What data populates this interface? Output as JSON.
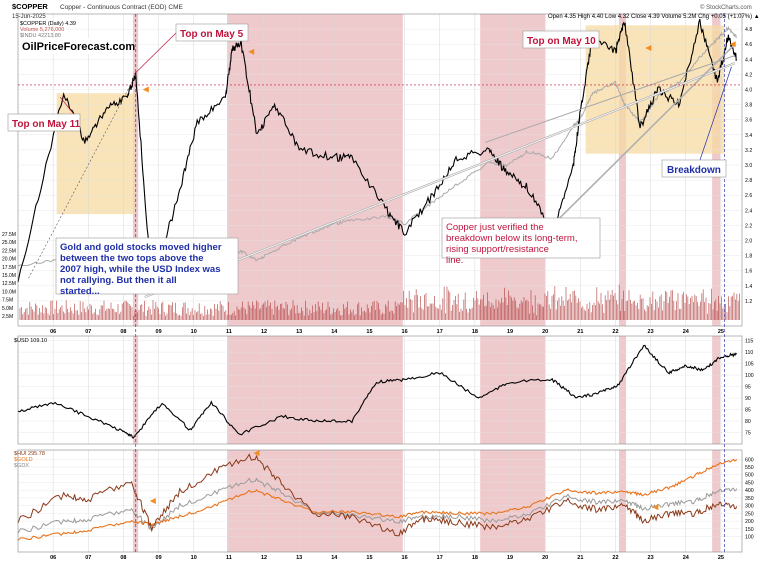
{
  "header": {
    "symbol": "$COPPER",
    "description": "Copper - Continuous Contract (EOD) CME",
    "date": "15-Jun-2025",
    "watermark": "© StockCharts.com",
    "quote": "Open 4.35  High 4.40  Low 4.32  Close 4.39  Volume 5.2M  Chg +0.05 (+1.07%) ▲",
    "legend": [
      {
        "label": "$COPPER (Daily) 4.39",
        "color": "#000000"
      },
      {
        "label": "Volume 5,276,000",
        "color": "#c0504d"
      },
      {
        "label": "$INDU 42213.80",
        "color": "#999999"
      }
    ]
  },
  "brand": "OilPriceForecast.com",
  "annotations": {
    "top_may11": "Top on May 11",
    "top_may5": "Top on May 5",
    "top_may10": "Top on May 10",
    "breakdown": "Breakdown",
    "gold_note": "Gold and gold stocks moved higher between the two tops above the 2007 high, while the USD Index was not rallying. But then it all started...",
    "copper_note": "Copper just verified the breakdown below its long-term, rising support/resistance line."
  },
  "colors": {
    "copper": "#000000",
    "indu": "#aaaaaa",
    "volume": "#b03a3a",
    "shade_red": "#e8b4b8",
    "shade_orange": "#f7d9a0",
    "annotation_red": "#c0143c",
    "annotation_blue": "#1f2fa8",
    "arrow_orange": "#f28c1e",
    "hui": "#8b3a1a",
    "gold": "#e8731c",
    "gdx": "#9a9a9a",
    "usd": "#000000"
  },
  "chart_data": [
    {
      "type": "line",
      "x": [
        2005.0,
        2006.3,
        2006.9,
        2007.5,
        2008.1,
        2008.35,
        2008.8,
        2009.5,
        2010.1,
        2010.9,
        2011.1,
        2011.35,
        2011.8,
        2012.3,
        2013.0,
        2013.9,
        2014.5,
        2015.5,
        2016.0,
        2016.8,
        2017.5,
        2018.4,
        2018.9,
        2019.5,
        2020.2,
        2020.8,
        2021.0,
        2021.35,
        2022.0,
        2022.25,
        2022.7,
        2023.2,
        2023.8,
        2024.4,
        2024.9,
        2025.2,
        2025.45
      ],
      "series": [
        {
          "name": "$COPPER (Daily) 4.39",
          "values": [
            1.45,
            3.95,
            3.3,
            3.75,
            3.9,
            4.2,
            1.4,
            2.5,
            3.55,
            3.9,
            4.55,
            4.6,
            3.4,
            3.8,
            3.2,
            3.1,
            3.1,
            2.4,
            2.1,
            2.6,
            3.1,
            3.2,
            2.9,
            2.7,
            2.1,
            3.0,
            3.7,
            4.7,
            4.5,
            4.9,
            3.5,
            4.0,
            3.8,
            4.9,
            4.1,
            4.7,
            4.39
          ]
        },
        {
          "name": "$INDU 42213.80",
          "values": [
            10700,
            11700,
            12500,
            13600,
            12700,
            12200,
            8500,
            9500,
            10500,
            11200,
            12200,
            12700,
            11500,
            12800,
            14500,
            16400,
            17000,
            17500,
            16500,
            19500,
            22000,
            25000,
            24500,
            26500,
            25500,
            30000,
            31000,
            34500,
            36000,
            33000,
            30500,
            34000,
            36000,
            39500,
            42000,
            43500,
            42213
          ]
        }
      ],
      "xlim": [
        2005,
        2025.6
      ],
      "ylim": [
        1.0,
        5.0
      ],
      "ticks_right": [
        "4.8",
        "4.6",
        "4.4",
        "4.2",
        "4.0",
        "3.8",
        "3.6",
        "3.4",
        "3.2",
        "3.0",
        "2.8",
        "2.6",
        "2.4",
        "2.2",
        "2.0",
        "1.8",
        "1.6",
        "1.4",
        "1.2"
      ],
      "volume_ticks_left": [
        "27.5M",
        "25.0M",
        "22.5M",
        "20.0M",
        "17.5M",
        "15.0M",
        "12.5M",
        "10.0M",
        "7.5M",
        "5.0M",
        "2.5M"
      ],
      "x_tick_labels": [
        "06",
        "07",
        "08",
        "09",
        "10",
        "11",
        "12",
        "13",
        "14",
        "15",
        "16",
        "17",
        "18",
        "19",
        "20",
        "21",
        "22",
        "23",
        "24",
        "25"
      ]
    },
    {
      "type": "line",
      "x": [
        2005.0,
        2006.0,
        2007.0,
        2007.9,
        2008.3,
        2009.1,
        2009.9,
        2010.5,
        2011.3,
        2012.5,
        2013.5,
        2014.5,
        2015.2,
        2016.0,
        2017.0,
        2018.1,
        2019.0,
        2020.2,
        2020.9,
        2021.5,
        2022.1,
        2022.8,
        2023.5,
        2024.0,
        2024.5,
        2025.0,
        2025.45
      ],
      "series": [
        {
          "name": "$USD 109.10",
          "values": [
            84,
            88,
            82,
            76,
            73,
            88,
            76,
            88,
            74,
            82,
            80,
            80,
            97,
            98,
            101,
            90,
            97,
            98,
            90,
            92,
            96,
            113,
            101,
            104,
            102,
            108,
            109.1
          ]
        }
      ],
      "xlim": [
        2005,
        2025.6
      ],
      "ylim": [
        70,
        117
      ],
      "ticks_right": [
        "115",
        "110",
        "105",
        "100",
        "95",
        "90",
        "85",
        "80",
        "75"
      ]
    },
    {
      "type": "line",
      "x": [
        2005.0,
        2006.3,
        2007.0,
        2008.2,
        2008.8,
        2009.6,
        2010.6,
        2011.7,
        2012.5,
        2013.4,
        2014.5,
        2015.8,
        2016.6,
        2017.5,
        2018.5,
        2019.5,
        2020.6,
        2021.5,
        2022.3,
        2022.8,
        2023.6,
        2024.3,
        2024.9,
        2025.45
      ],
      "series": [
        {
          "name": "$HUI 295.78",
          "values": [
            200,
            370,
            340,
            460,
            160,
            390,
            520,
            620,
            450,
            250,
            230,
            120,
            220,
            190,
            160,
            210,
            330,
            270,
            300,
            200,
            250,
            250,
            320,
            296
          ]
        },
        {
          "name": "$GOLD",
          "values": [
            80,
            120,
            140,
            200,
            180,
            230,
            300,
            400,
            340,
            260,
            260,
            230,
            260,
            250,
            250,
            290,
            400,
            380,
            390,
            370,
            420,
            500,
            570,
            600
          ]
        },
        {
          "name": "$GDX",
          "values": [
            130,
            200,
            210,
            280,
            150,
            300,
            380,
            470,
            390,
            260,
            240,
            200,
            230,
            230,
            200,
            240,
            360,
            320,
            330,
            280,
            310,
            330,
            400,
            410
          ]
        }
      ],
      "xlim": [
        2005,
        2025.6
      ],
      "ylim": [
        0,
        660
      ],
      "ticks_right": [
        "600",
        "550",
        "500",
        "450",
        "400",
        "350",
        "300",
        "250",
        "200",
        "150",
        "100"
      ]
    }
  ],
  "shaded_periods": [
    {
      "start": 2008.27,
      "end": 2008.42,
      "color": "shade_red"
    },
    {
      "start": 2010.95,
      "end": 2015.95,
      "color": "shade_red"
    },
    {
      "start": 2018.15,
      "end": 2020.0,
      "color": "shade_red"
    },
    {
      "start": 2022.1,
      "end": 2022.3,
      "color": "shade_red"
    },
    {
      "start": 2024.75,
      "end": 2024.98,
      "color": "shade_red"
    }
  ],
  "highlight_boxes": [
    {
      "start": 2006.1,
      "end": 2008.32,
      "ylow": 2.35,
      "yhigh": 3.95
    },
    {
      "start": 2021.15,
      "end": 2025.1,
      "ylow": 3.15,
      "yhigh": 4.85
    }
  ]
}
